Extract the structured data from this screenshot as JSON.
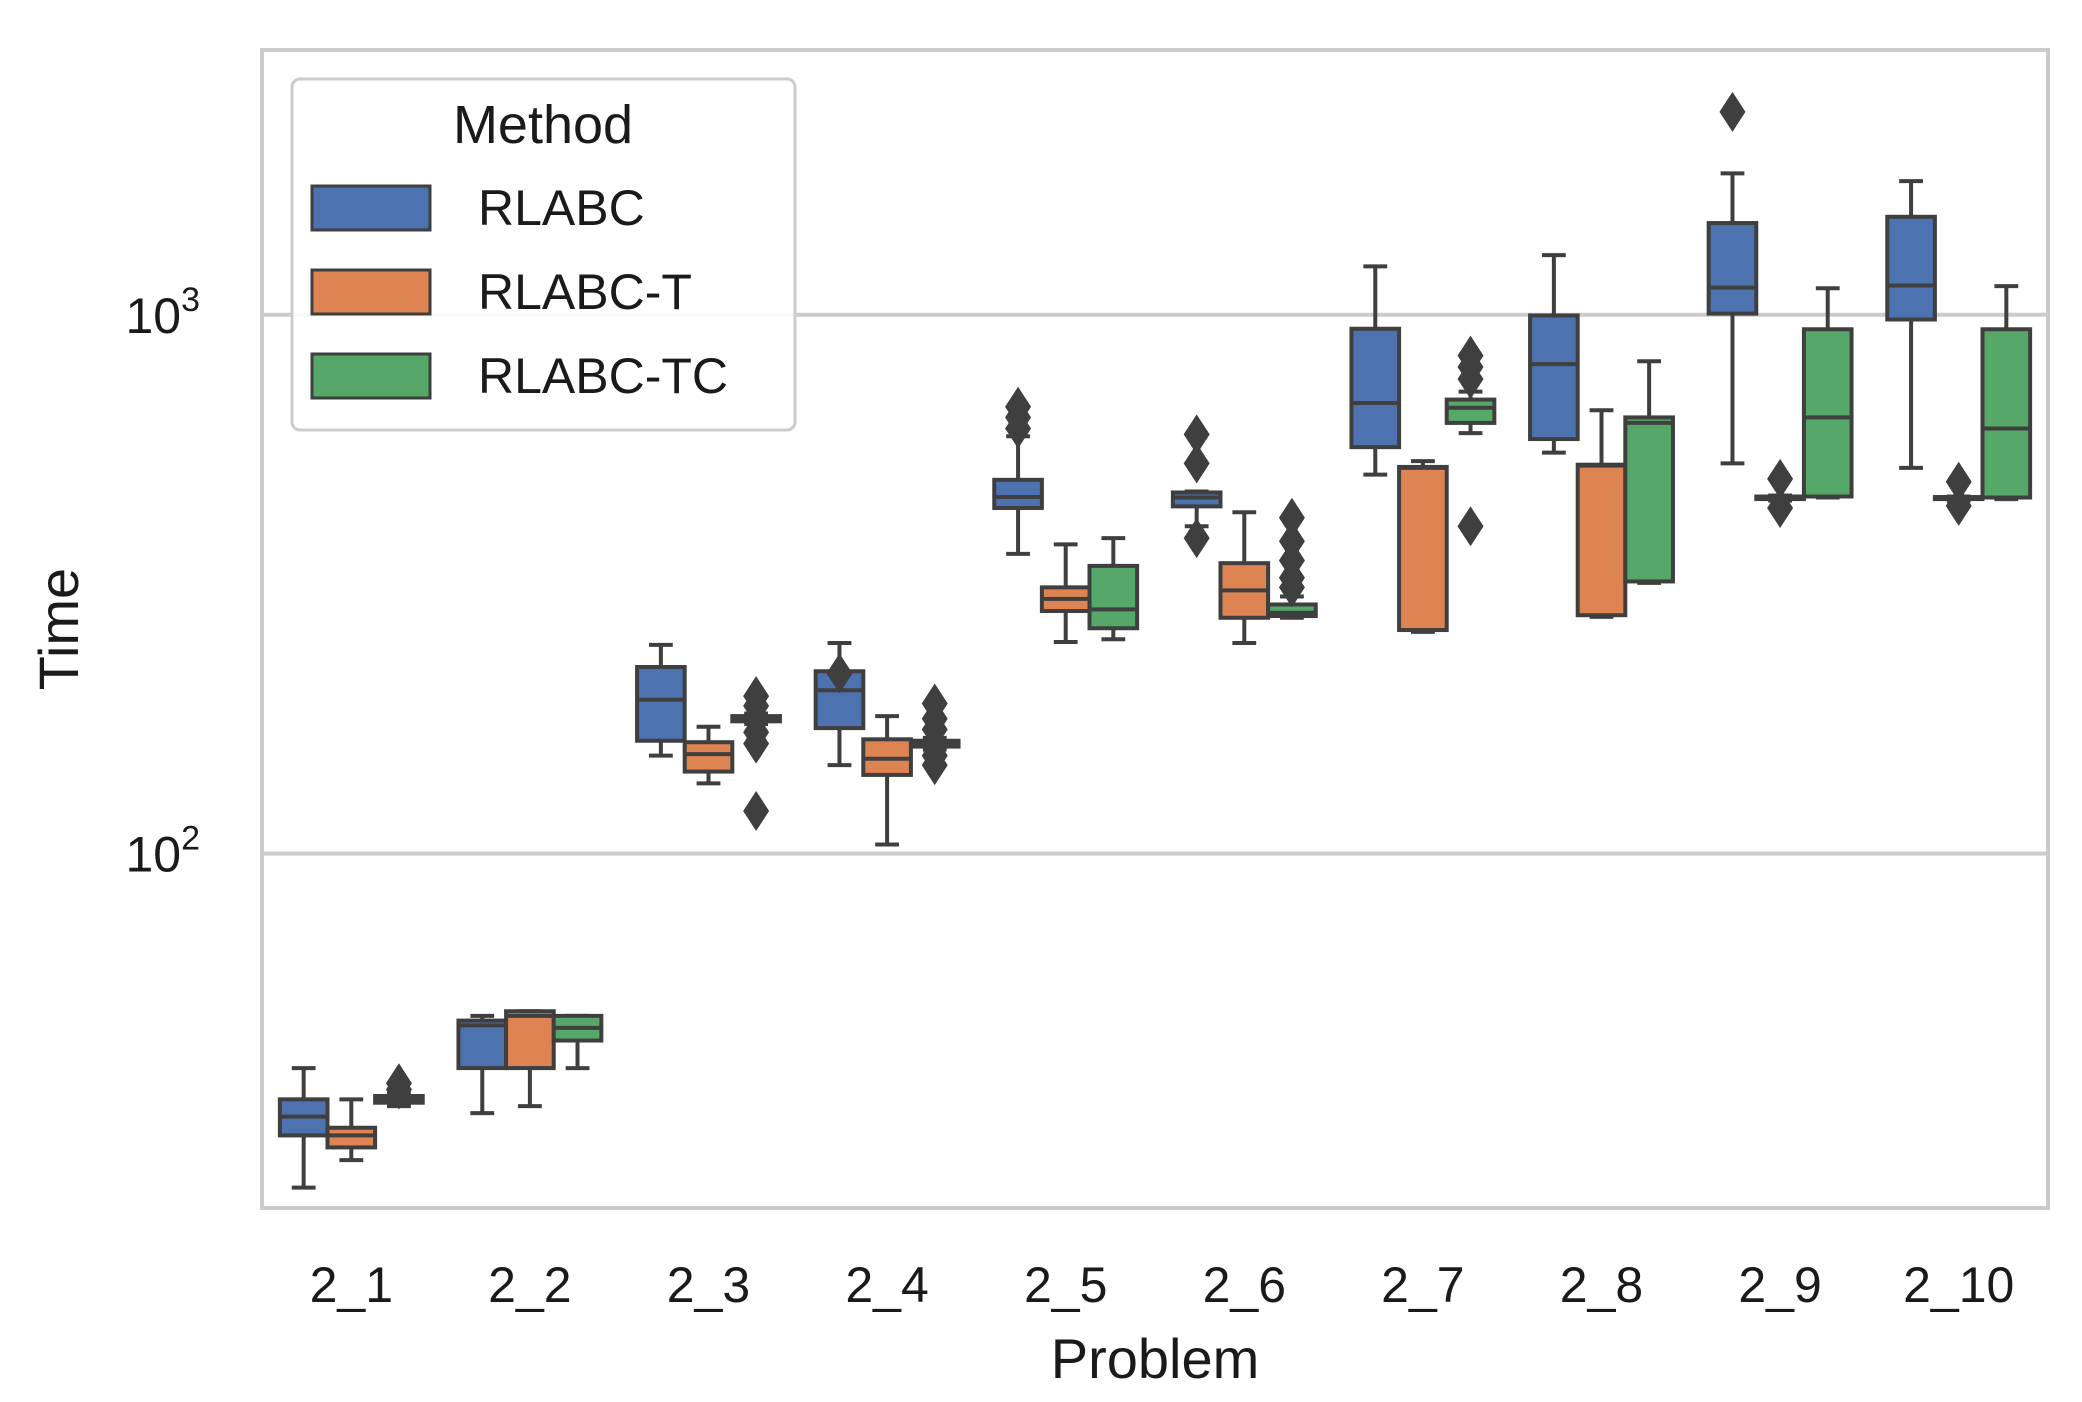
{
  "chart_data": {
    "type": "boxplot",
    "xlabel": "Problem",
    "ylabel": "Time",
    "yscale": "log",
    "ylim": [
      22,
      3100
    ],
    "yticks": [
      {
        "value": 100,
        "base": "10",
        "exp": "2"
      },
      {
        "value": 1000,
        "base": "10",
        "exp": "3"
      }
    ],
    "categories": [
      "2_1",
      "2_2",
      "2_3",
      "2_4",
      "2_5",
      "2_6",
      "2_7",
      "2_8",
      "2_9",
      "2_10"
    ],
    "legend": {
      "title": "Method",
      "position": "top-left"
    },
    "grid": "horizontal",
    "series": [
      {
        "name": "RLABC",
        "color": "#4c72b0",
        "boxes": [
          {
            "whislo": 24,
            "q1": 30,
            "med": 32.5,
            "q3": 35,
            "whishi": 40,
            "fliers": []
          },
          {
            "whislo": 33,
            "q1": 40,
            "med": 48,
            "q3": 49,
            "whishi": 50,
            "fliers": []
          },
          {
            "whislo": 152,
            "q1": 162,
            "med": 193,
            "q3": 222,
            "whishi": 244,
            "fliers": []
          },
          {
            "whislo": 146,
            "q1": 171,
            "med": 201,
            "q3": 218,
            "whishi": 246,
            "fliers": [
              216
            ]
          },
          {
            "whislo": 360,
            "q1": 438,
            "med": 459,
            "q3": 494,
            "whishi": 595,
            "fliers": [
              615,
              645,
              675
            ]
          },
          {
            "whislo": 405,
            "q1": 441,
            "med": 458,
            "q3": 468,
            "whishi": 470,
            "fliers": [
              385,
              530,
              600
            ]
          },
          {
            "whislo": 505,
            "q1": 568,
            "med": 686,
            "q3": 942,
            "whishi": 1230,
            "fliers": []
          },
          {
            "whislo": 555,
            "q1": 588,
            "med": 810,
            "q3": 997,
            "whishi": 1290,
            "fliers": []
          },
          {
            "whislo": 530,
            "q1": 1005,
            "med": 1123,
            "q3": 1480,
            "whishi": 1830,
            "fliers": [
              2380
            ]
          },
          {
            "whislo": 520,
            "q1": 980,
            "med": 1133,
            "q3": 1520,
            "whishi": 1770,
            "fliers": []
          }
        ]
      },
      {
        "name": "RLABC-T",
        "color": "#dd8452",
        "boxes": [
          {
            "whislo": 27,
            "q1": 28.5,
            "med": 30,
            "q3": 31,
            "whishi": 35,
            "fliers": []
          },
          {
            "whislo": 34,
            "q1": 40,
            "med": 50,
            "q3": 51,
            "whishi": 51,
            "fliers": []
          },
          {
            "whislo": 135,
            "q1": 142,
            "med": 153,
            "q3": 161,
            "whishi": 172,
            "fliers": []
          },
          {
            "whislo": 104,
            "q1": 140,
            "med": 150,
            "q3": 163,
            "whishi": 180,
            "fliers": []
          },
          {
            "whislo": 247,
            "q1": 282,
            "med": 297,
            "q3": 312,
            "whishi": 375,
            "fliers": []
          },
          {
            "whislo": 246,
            "q1": 274,
            "med": 308,
            "q3": 346,
            "whishi": 430,
            "fliers": []
          },
          {
            "whislo": 258,
            "q1": 260,
            "med": 520,
            "q3": 522,
            "whishi": 535,
            "fliers": []
          },
          {
            "whislo": 275,
            "q1": 277,
            "med": 525,
            "q3": 527,
            "whishi": 665,
            "fliers": []
          },
          {
            "whislo": 452,
            "q1": 455,
            "med": 458,
            "q3": 460,
            "whishi": 462,
            "fliers": [
              438,
              496
            ]
          },
          {
            "whislo": 452,
            "q1": 455,
            "med": 457,
            "q3": 459,
            "whishi": 460,
            "fliers": [
              442,
              490
            ]
          }
        ]
      },
      {
        "name": "RLABC-TC",
        "color": "#55a868",
        "boxes": [
          {
            "whislo": 34,
            "q1": 34.5,
            "med": 35,
            "q3": 35.5,
            "whishi": 36,
            "fliers": [
              36.5,
              37.5
            ]
          },
          {
            "whislo": 40,
            "q1": 45,
            "med": 47.5,
            "q3": 50,
            "whishi": 50,
            "fliers": []
          },
          {
            "whislo": 174,
            "q1": 176,
            "med": 178,
            "q3": 180,
            "whishi": 182,
            "fliers": [
              120,
              160,
              168,
              188,
              196
            ]
          },
          {
            "whislo": 156,
            "q1": 158,
            "med": 160,
            "q3": 162,
            "whishi": 164,
            "fliers": [
              146,
              152,
              170,
              178,
              190
            ]
          },
          {
            "whislo": 250,
            "q1": 262,
            "med": 284,
            "q3": 342,
            "whishi": 385,
            "fliers": []
          },
          {
            "whislo": 274,
            "q1": 276,
            "med": 280,
            "q3": 290,
            "whishi": 300,
            "fliers": [
              312,
              325,
              350,
              380,
              420
            ]
          },
          {
            "whislo": 603,
            "q1": 630,
            "med": 672,
            "q3": 696,
            "whishi": 720,
            "fliers": [
              405,
              760,
              800,
              840
            ]
          },
          {
            "whislo": 318,
            "q1": 320,
            "med": 630,
            "q3": 645,
            "whishi": 820,
            "fliers": []
          },
          {
            "whislo": 458,
            "q1": 460,
            "med": 645,
            "q3": 940,
            "whishi": 1120,
            "fliers": []
          },
          {
            "whislo": 455,
            "q1": 458,
            "med": 615,
            "q3": 940,
            "whishi": 1130,
            "fliers": []
          }
        ]
      }
    ]
  }
}
